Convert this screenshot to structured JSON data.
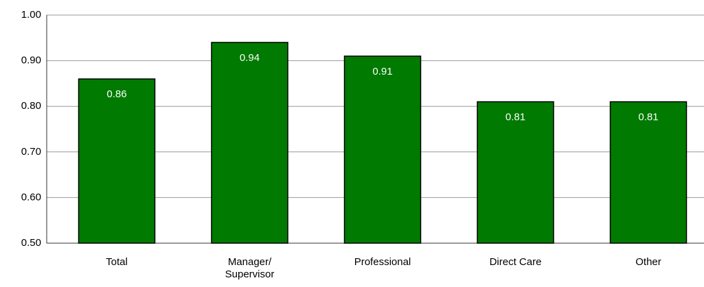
{
  "chart_data": {
    "type": "bar",
    "categories": [
      "Total",
      "Manager/ Supervisor",
      "Professional",
      "Direct Care",
      "Other"
    ],
    "values": [
      0.86,
      0.94,
      0.91,
      0.81,
      0.81
    ],
    "color": "#007a00",
    "ylim": [
      0.5,
      1.0
    ],
    "yticks": [
      {
        "value": 0.5,
        "label": "0.50"
      },
      {
        "value": 0.6,
        "label": "0.60"
      },
      {
        "value": 0.7,
        "label": "0.70"
      },
      {
        "value": 0.8,
        "label": "0.80"
      },
      {
        "value": 0.9,
        "label": "0.90"
      },
      {
        "value": 1.0,
        "label": "1.00"
      }
    ],
    "grid": true
  }
}
